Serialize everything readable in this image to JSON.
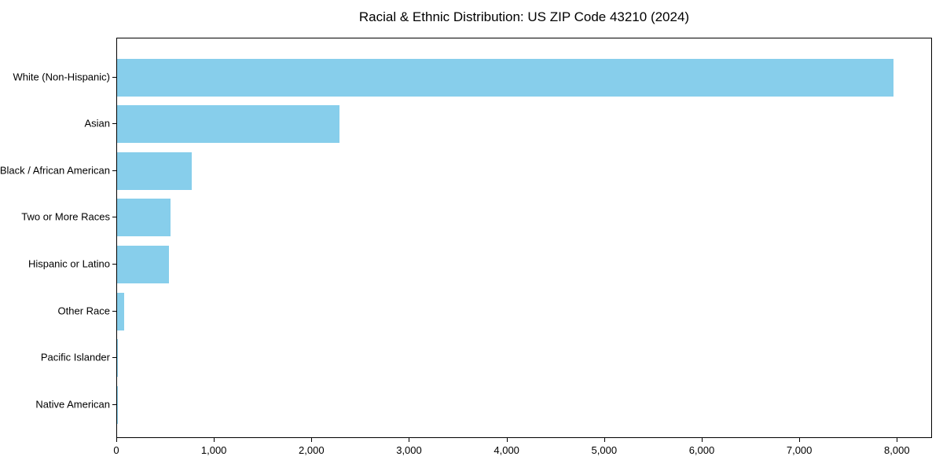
{
  "chart_data": {
    "type": "bar",
    "orientation": "horizontal",
    "title": "Racial & Ethnic Distribution: US ZIP Code 43210 (2024)",
    "categories": [
      "White (Non-Hispanic)",
      "Asian",
      "Black / African American",
      "Two or More Races",
      "Hispanic or Latino",
      "Other Race",
      "Pacific Islander",
      "Native American"
    ],
    "values": [
      7955,
      2280,
      765,
      545,
      530,
      70,
      10,
      5
    ],
    "xlabel": "",
    "ylabel": "",
    "xlim": [
      0,
      8360
    ],
    "x_ticks": [
      0,
      1000,
      2000,
      3000,
      4000,
      5000,
      6000,
      7000,
      8000
    ],
    "x_tick_labels": [
      "0",
      "1,000",
      "2,000",
      "3,000",
      "4,000",
      "5,000",
      "6,000",
      "7,000",
      "8,000"
    ],
    "bar_color": "#87ceeb",
    "spine_color": "#000000",
    "text_color": "#000000",
    "background_color": "#ffffff",
    "grid": false,
    "legend": null
  }
}
